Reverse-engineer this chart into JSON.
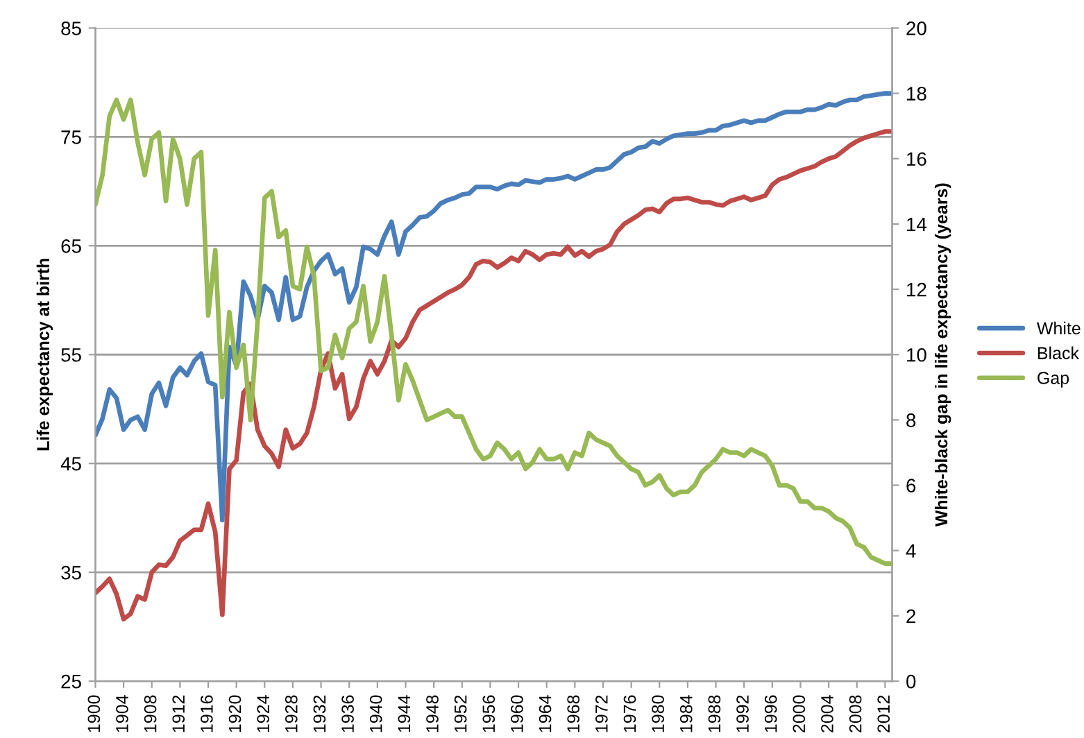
{
  "chart_data": {
    "type": "line",
    "x": [
      1900,
      1901,
      1902,
      1903,
      1904,
      1905,
      1906,
      1907,
      1908,
      1909,
      1910,
      1911,
      1912,
      1913,
      1914,
      1915,
      1916,
      1917,
      1918,
      1919,
      1920,
      1921,
      1922,
      1923,
      1924,
      1925,
      1926,
      1927,
      1928,
      1929,
      1930,
      1931,
      1932,
      1933,
      1934,
      1935,
      1936,
      1937,
      1938,
      1939,
      1940,
      1941,
      1942,
      1943,
      1944,
      1945,
      1946,
      1947,
      1948,
      1949,
      1950,
      1951,
      1952,
      1953,
      1954,
      1955,
      1956,
      1957,
      1958,
      1959,
      1960,
      1961,
      1962,
      1963,
      1964,
      1965,
      1966,
      1967,
      1968,
      1969,
      1970,
      1971,
      1972,
      1973,
      1974,
      1975,
      1976,
      1977,
      1978,
      1979,
      1980,
      1981,
      1982,
      1983,
      1984,
      1985,
      1986,
      1987,
      1988,
      1989,
      1990,
      1991,
      1992,
      1993,
      1994,
      1995,
      1996,
      1997,
      1998,
      1999,
      2000,
      2001,
      2002,
      2003,
      2004,
      2005,
      2006,
      2007,
      2008,
      2009,
      2010,
      2011,
      2012,
      2013
    ],
    "series": [
      {
        "name": "White",
        "color": "#4a7ebb",
        "values": [
          47.6,
          49.1,
          51.8,
          51.0,
          48.1,
          49.0,
          49.3,
          48.1,
          51.4,
          52.4,
          50.3,
          52.9,
          53.8,
          53.1,
          54.4,
          55.1,
          52.5,
          52.2,
          39.8,
          55.7,
          54.0,
          61.7,
          60.4,
          58.2,
          61.3,
          60.7,
          58.2,
          62.1,
          58.2,
          58.5,
          61.2,
          62.7,
          63.6,
          64.2,
          62.4,
          62.9,
          59.8,
          61.2,
          64.9,
          64.7,
          64.2,
          65.9,
          67.2,
          64.2,
          66.3,
          66.9,
          67.6,
          67.7,
          68.2,
          68.9,
          69.2,
          69.4,
          69.7,
          69.8,
          70.4,
          70.4,
          70.4,
          70.2,
          70.5,
          70.7,
          70.6,
          71.0,
          70.9,
          70.8,
          71.1,
          71.1,
          71.2,
          71.4,
          71.1,
          71.4,
          71.7,
          72.0,
          72.0,
          72.2,
          72.8,
          73.4,
          73.6,
          74.0,
          74.1,
          74.6,
          74.4,
          74.8,
          75.1,
          75.2,
          75.3,
          75.3,
          75.4,
          75.6,
          75.6,
          76.0,
          76.1,
          76.3,
          76.5,
          76.3,
          76.5,
          76.5,
          76.8,
          77.1,
          77.3,
          77.3,
          77.3,
          77.5,
          77.5,
          77.7,
          78.0,
          77.9,
          78.2,
          78.4,
          78.4,
          78.7,
          78.8,
          78.9,
          79.0,
          79.0
        ]
      },
      {
        "name": "Black",
        "color": "#be4b48",
        "values": [
          33.1,
          33.7,
          34.4,
          33.0,
          30.7,
          31.2,
          32.8,
          32.5,
          35.0,
          35.7,
          35.6,
          36.4,
          37.9,
          38.4,
          38.9,
          38.9,
          41.3,
          38.7,
          31.1,
          44.5,
          45.3,
          51.5,
          52.3,
          48.1,
          46.6,
          45.9,
          44.7,
          48.1,
          46.4,
          46.8,
          47.8,
          50.2,
          53.6,
          55.1,
          51.9,
          53.2,
          49.1,
          50.2,
          52.8,
          54.4,
          53.2,
          54.4,
          56.3,
          55.7,
          56.5,
          58.0,
          59.1,
          59.5,
          59.9,
          60.3,
          60.7,
          61.0,
          61.4,
          62.1,
          63.3,
          63.6,
          63.5,
          63.0,
          63.4,
          63.9,
          63.6,
          64.5,
          64.2,
          63.7,
          64.2,
          64.3,
          64.2,
          64.9,
          64.1,
          64.5,
          64.0,
          64.5,
          64.7,
          65.1,
          66.3,
          67.0,
          67.4,
          67.8,
          68.3,
          68.4,
          68.1,
          68.9,
          69.3,
          69.3,
          69.4,
          69.2,
          69.0,
          69.0,
          68.8,
          68.7,
          69.1,
          69.3,
          69.5,
          69.2,
          69.4,
          69.6,
          70.6,
          71.1,
          71.3,
          71.6,
          71.9,
          72.1,
          72.3,
          72.7,
          73.0,
          73.2,
          73.7,
          74.2,
          74.6,
          74.9,
          75.1,
          75.3,
          75.5,
          75.5
        ]
      },
      {
        "name": "Gap",
        "color": "#98b954",
        "axis": "y2",
        "values": [
          14.6,
          15.5,
          17.3,
          17.8,
          17.2,
          17.8,
          16.5,
          15.5,
          16.6,
          16.8,
          14.7,
          16.6,
          16.0,
          14.6,
          16.0,
          16.2,
          11.2,
          13.2,
          8.7,
          11.3,
          9.6,
          10.3,
          8.0,
          11.0,
          14.8,
          15.0,
          13.6,
          13.8,
          12.1,
          12.0,
          13.3,
          12.4,
          9.5,
          9.6,
          10.6,
          9.9,
          10.8,
          11.0,
          12.1,
          10.4,
          11.0,
          12.4,
          10.6,
          8.6,
          9.7,
          9.2,
          8.6,
          8.0,
          8.1,
          8.2,
          8.3,
          8.1,
          8.1,
          7.6,
          7.1,
          6.8,
          6.9,
          7.3,
          7.1,
          6.8,
          7.0,
          6.5,
          6.7,
          7.1,
          6.8,
          6.8,
          6.9,
          6.5,
          7.0,
          6.9,
          7.6,
          7.4,
          7.3,
          7.2,
          6.9,
          6.7,
          6.5,
          6.4,
          6.0,
          6.1,
          6.3,
          5.9,
          5.7,
          5.8,
          5.8,
          6.0,
          6.4,
          6.6,
          6.8,
          7.1,
          7.0,
          7.0,
          6.9,
          7.1,
          7.0,
          6.9,
          6.6,
          6.0,
          6.0,
          5.9,
          5.5,
          5.5,
          5.3,
          5.3,
          5.2,
          5.0,
          4.9,
          4.7,
          4.2,
          4.1,
          3.8,
          3.7,
          3.6,
          3.6
        ]
      }
    ],
    "ylabel": "Life expectancy at birth",
    "y2label": "White-black gap in life expectancy (years)",
    "xlim": [
      1900,
      2013
    ],
    "xticks": [
      1900,
      1904,
      1908,
      1912,
      1916,
      1920,
      1924,
      1928,
      1932,
      1936,
      1940,
      1944,
      1948,
      1952,
      1956,
      1960,
      1964,
      1968,
      1972,
      1976,
      1980,
      1984,
      1988,
      1992,
      1996,
      2000,
      2004,
      2008,
      2012
    ],
    "ylim": [
      25,
      85
    ],
    "yticks": [
      25,
      35,
      45,
      55,
      65,
      75,
      85
    ],
    "y2lim": [
      0,
      20
    ],
    "y2ticks": [
      0,
      2,
      4,
      6,
      8,
      10,
      12,
      14,
      16,
      18,
      20
    ],
    "grid": "y",
    "legend": "right",
    "marker": "none",
    "line_style": "solid"
  }
}
